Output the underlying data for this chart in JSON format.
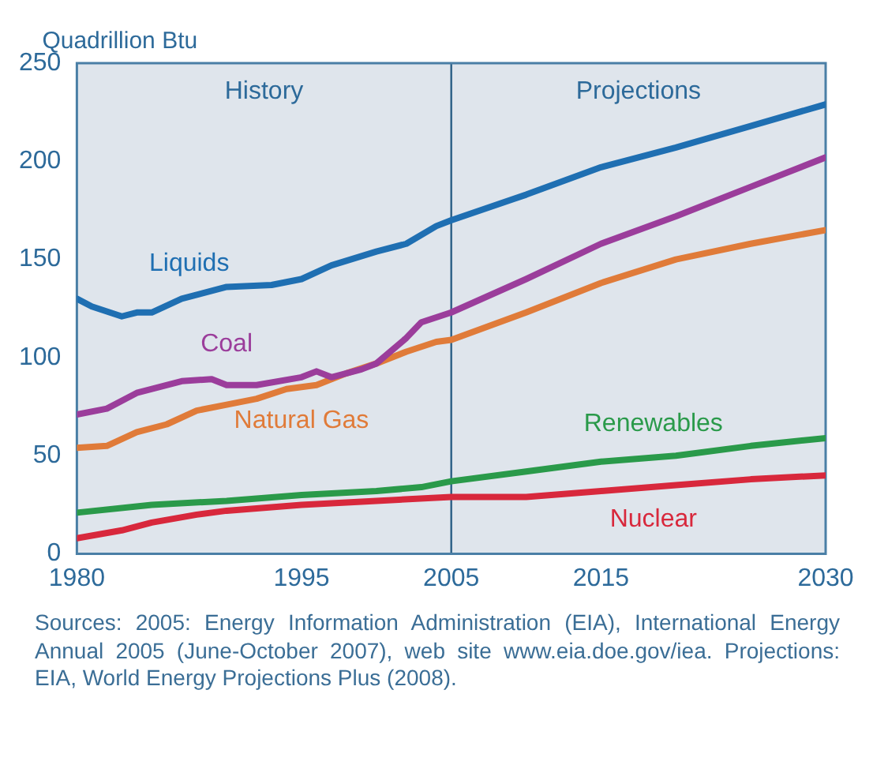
{
  "chart_data": {
    "type": "line",
    "ylabel": "Quadrillion Btu",
    "xlim": [
      1980,
      2030
    ],
    "xticks": [
      1980,
      1995,
      2005,
      2015,
      2030
    ],
    "ylim": [
      0,
      250
    ],
    "yticks": [
      0,
      50,
      100,
      150,
      200,
      250
    ],
    "grid": false,
    "legend": false,
    "marker": "none",
    "line_style": "solid",
    "bands": [
      {
        "axis": "x",
        "from": 1980,
        "to": 2005,
        "label": "History",
        "color": "#dfe5ec"
      },
      {
        "axis": "x",
        "from": 2005,
        "to": 2030,
        "label": "Projections",
        "color": "#dfe5ec"
      }
    ],
    "ref_lines": [
      {
        "axis": "x",
        "value": 2005,
        "color": "#2b5f86"
      }
    ],
    "series": [
      {
        "name": "Liquids",
        "color": "#1f6fb2",
        "x": [
          1980,
          1981,
          1983,
          1984,
          1985,
          1987,
          1990,
          1993,
          1995,
          1997,
          2000,
          2002,
          2004,
          2005,
          2010,
          2015,
          2020,
          2025,
          2030
        ],
        "values": [
          130,
          126,
          121,
          123,
          123,
          130,
          136,
          137,
          140,
          147,
          154,
          158,
          167,
          170,
          183,
          197,
          207,
          218,
          229
        ]
      },
      {
        "name": "Coal",
        "color": "#9b3d9b",
        "x": [
          1980,
          1982,
          1984,
          1987,
          1989,
          1990,
          1992,
          1995,
          1996,
          1997,
          1999,
          2000,
          2002,
          2003,
          2005,
          2010,
          2015,
          2020,
          2025,
          2030
        ],
        "values": [
          71,
          74,
          82,
          88,
          89,
          86,
          86,
          90,
          93,
          90,
          94,
          97,
          110,
          118,
          123,
          140,
          158,
          172,
          187,
          202
        ]
      },
      {
        "name": "Natural Gas",
        "color": "#e07b39",
        "x": [
          1980,
          1982,
          1984,
          1986,
          1988,
          1990,
          1992,
          1994,
          1996,
          1998,
          2000,
          2002,
          2004,
          2005,
          2010,
          2015,
          2020,
          2025,
          2030
        ],
        "values": [
          54,
          55,
          62,
          66,
          73,
          76,
          79,
          84,
          86,
          92,
          97,
          103,
          108,
          109,
          123,
          138,
          150,
          158,
          165
        ]
      },
      {
        "name": "Renewables",
        "color": "#2a9a4a",
        "x": [
          1980,
          1985,
          1990,
          1995,
          2000,
          2003,
          2005,
          2010,
          2015,
          2020,
          2025,
          2030
        ],
        "values": [
          21,
          25,
          27,
          30,
          32,
          34,
          37,
          42,
          47,
          50,
          55,
          59
        ]
      },
      {
        "name": "Nuclear",
        "color": "#d8283c",
        "x": [
          1980,
          1983,
          1985,
          1988,
          1990,
          1995,
          2000,
          2005,
          2010,
          2015,
          2020,
          2025,
          2030
        ],
        "values": [
          8,
          12,
          16,
          20,
          22,
          25,
          27,
          29,
          29,
          32,
          35,
          38,
          40
        ]
      }
    ],
    "annotations": [
      "Sources: 2005: Energy Information Administration (EIA), International Energy Annual 2005 (June-October 2007), web site www.eia.doe.gov/iea. Projections: EIA, World Energy Projections Plus (2008)."
    ]
  }
}
